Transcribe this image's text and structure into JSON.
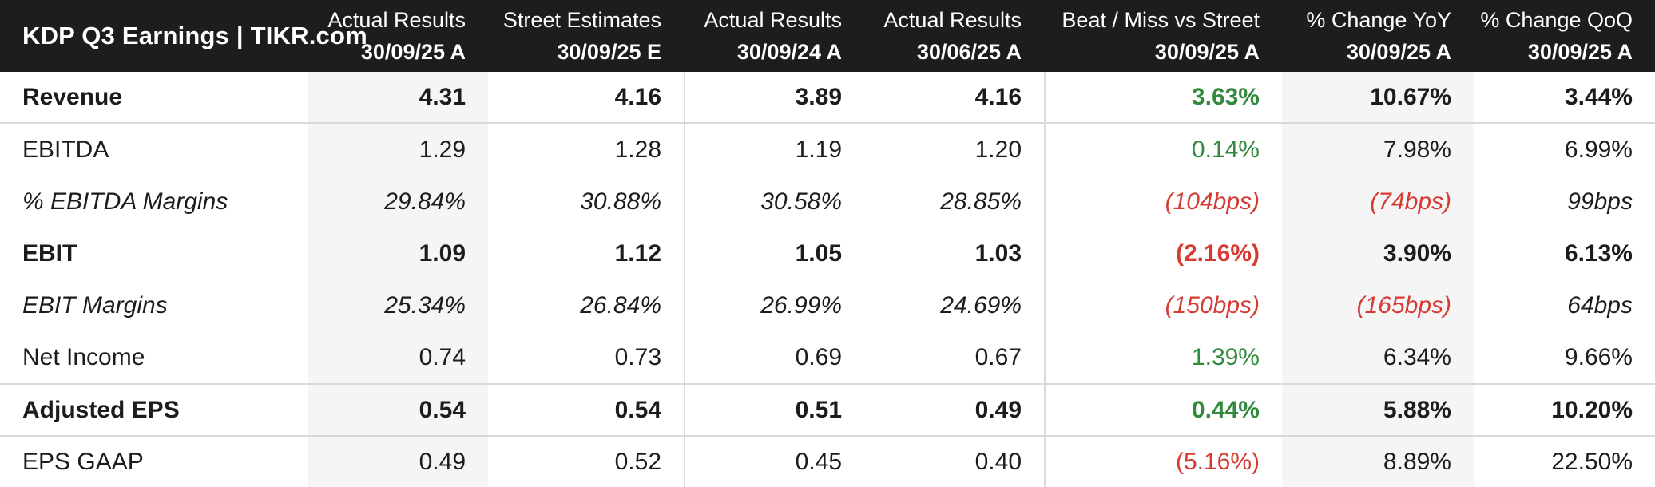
{
  "title": "KDP Q3 Earnings | TIKR.com",
  "colors": {
    "positive_green": "#338a3e",
    "negative_red": "#d63b32",
    "header_bg": "#1d1d1d",
    "shaded_column_bg": "#f5f5f5",
    "text_dark": "#1c1c1c"
  },
  "chart_data": {
    "type": "table",
    "title": "KDP Q3 Earnings | TIKR.com",
    "columns": [
      {
        "label": "Actual Results",
        "date": "30/09/25 A"
      },
      {
        "label": "Street Estimates",
        "date": "30/09/25 E"
      },
      {
        "label": "Actual Results",
        "date": "30/09/24 A"
      },
      {
        "label": "Actual Results",
        "date": "30/06/25 A"
      },
      {
        "label": "Beat / Miss vs Street",
        "date": "30/09/25 A"
      },
      {
        "label": "% Change YoY",
        "date": "30/09/25 A"
      },
      {
        "label": "% Change QoQ",
        "date": "30/09/25 A"
      }
    ],
    "rows": [
      {
        "label": "Revenue",
        "emphasis": "bold",
        "divider_below": true,
        "cells": [
          {
            "text": "4.31"
          },
          {
            "text": "4.16"
          },
          {
            "text": "3.89"
          },
          {
            "text": "4.16"
          },
          {
            "text": "3.63%",
            "tone": "positive"
          },
          {
            "text": "10.67%"
          },
          {
            "text": "3.44%"
          }
        ]
      },
      {
        "label": "EBITDA",
        "emphasis": "normal",
        "cells": [
          {
            "text": "1.29"
          },
          {
            "text": "1.28"
          },
          {
            "text": "1.19"
          },
          {
            "text": "1.20"
          },
          {
            "text": "0.14%",
            "tone": "positive"
          },
          {
            "text": "7.98%"
          },
          {
            "text": "6.99%"
          }
        ]
      },
      {
        "label": "% EBITDA Margins",
        "emphasis": "italic",
        "cells": [
          {
            "text": "29.84%"
          },
          {
            "text": "30.88%"
          },
          {
            "text": "30.58%"
          },
          {
            "text": "28.85%"
          },
          {
            "text": "(104bps)",
            "tone": "negative"
          },
          {
            "text": "(74bps)",
            "tone": "negative"
          },
          {
            "text": "99bps"
          }
        ]
      },
      {
        "label": "EBIT",
        "emphasis": "bold",
        "cells": [
          {
            "text": "1.09"
          },
          {
            "text": "1.12"
          },
          {
            "text": "1.05"
          },
          {
            "text": "1.03"
          },
          {
            "text": "(2.16%)",
            "tone": "negative"
          },
          {
            "text": "3.90%"
          },
          {
            "text": "6.13%"
          }
        ]
      },
      {
        "label": "EBIT Margins",
        "emphasis": "italic",
        "cells": [
          {
            "text": "25.34%"
          },
          {
            "text": "26.84%"
          },
          {
            "text": "26.99%"
          },
          {
            "text": "24.69%"
          },
          {
            "text": "(150bps)",
            "tone": "negative"
          },
          {
            "text": "(165bps)",
            "tone": "negative"
          },
          {
            "text": "64bps"
          }
        ]
      },
      {
        "label": "Net Income",
        "emphasis": "normal",
        "cells": [
          {
            "text": "0.74"
          },
          {
            "text": "0.73"
          },
          {
            "text": "0.69"
          },
          {
            "text": "0.67"
          },
          {
            "text": "1.39%",
            "tone": "positive"
          },
          {
            "text": "6.34%"
          },
          {
            "text": "9.66%"
          }
        ]
      },
      {
        "label": "Adjusted EPS",
        "emphasis": "bold",
        "divider_above": true,
        "cells": [
          {
            "text": "0.54"
          },
          {
            "text": "0.54"
          },
          {
            "text": "0.51"
          },
          {
            "text": "0.49"
          },
          {
            "text": "0.44%",
            "tone": "positive"
          },
          {
            "text": "5.88%"
          },
          {
            "text": "10.20%"
          }
        ]
      },
      {
        "label": "EPS GAAP",
        "emphasis": "normal",
        "divider_above": true,
        "cells": [
          {
            "text": "0.49"
          },
          {
            "text": "0.52"
          },
          {
            "text": "0.45"
          },
          {
            "text": "0.40"
          },
          {
            "text": "(5.16%)",
            "tone": "negative"
          },
          {
            "text": "8.89%"
          },
          {
            "text": "22.50%"
          }
        ]
      }
    ]
  }
}
